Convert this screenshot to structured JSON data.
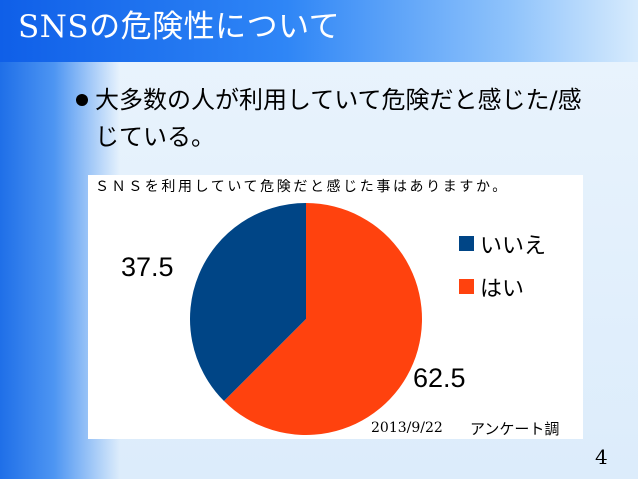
{
  "slide": {
    "title": "SNSの危険性について",
    "bullet": "大多数の人が利用していて危険だと感じた/感じている。",
    "page_number": "4"
  },
  "chart": {
    "caption": "ＳＮＳを利用していて危険だと感じた事はありますか。",
    "footer_date": "2013/9/22",
    "footer_survey": "アンケート調"
  },
  "colors": {
    "no": "#004586",
    "yes": "#ff420e",
    "title_bar": "#1565e8"
  },
  "chart_data": {
    "type": "pie",
    "title": "ＳＮＳを利用していて危険だと感じた事はありますか。",
    "slices": [
      {
        "label": "はい",
        "value": 62.5,
        "color": "#ff420e"
      },
      {
        "label": "いいえ",
        "value": 37.5,
        "color": "#004586"
      }
    ],
    "legend": [
      "いいえ",
      "はい"
    ],
    "legend_position": "right",
    "data_labels": [
      "62.5",
      "37.5"
    ]
  }
}
